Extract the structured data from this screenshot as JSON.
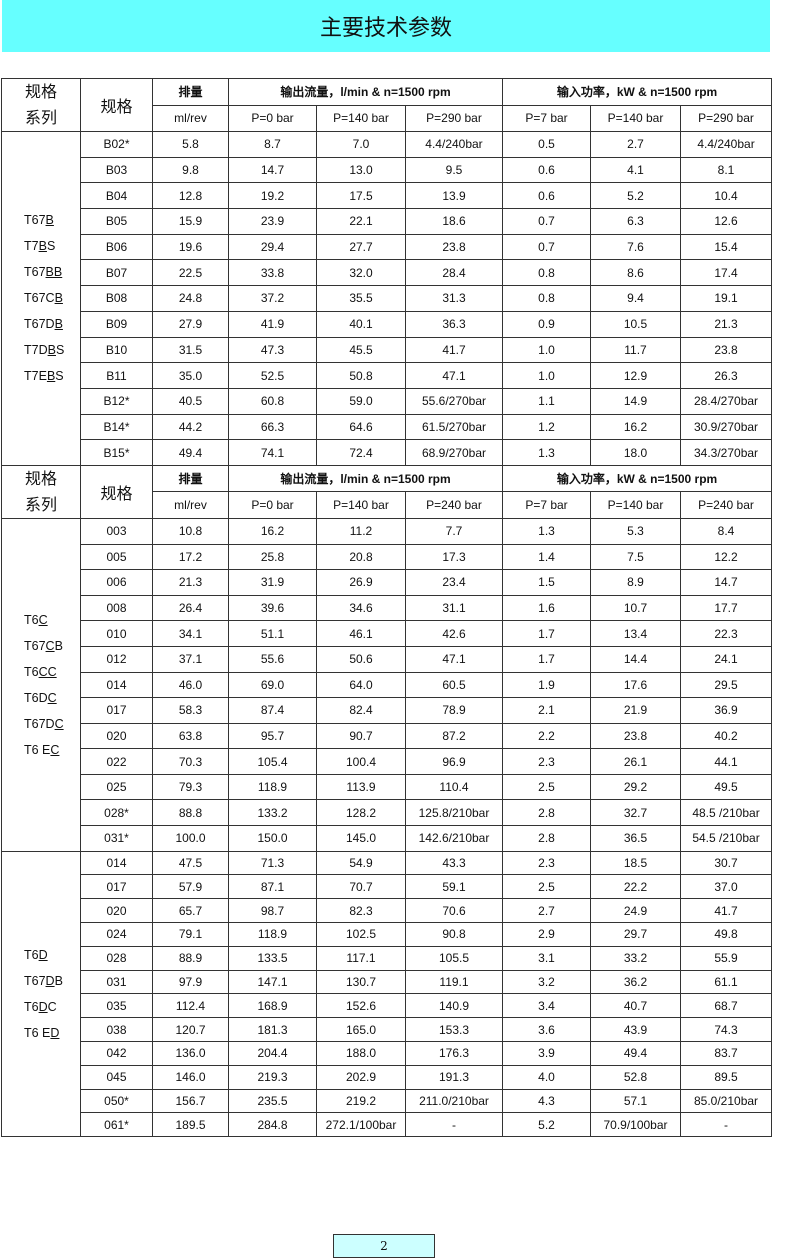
{
  "title": "主要技术参数",
  "page_number": "2",
  "header": {
    "series": "规格系列",
    "model": "规格",
    "disp": "排量",
    "disp_unit": "ml/rev",
    "flow": "输出流量，l/min & n=1500 rpm",
    "power": "输入功率，kW & n=1500 rpm"
  },
  "sections": [
    {
      "flow_cols": [
        "P=0 bar",
        "P=140 bar",
        "P=290 bar"
      ],
      "power_cols": [
        "P=7 bar",
        "P=140 bar",
        "P=290 bar"
      ],
      "series": [
        [
          "T67",
          "B",
          ""
        ],
        [
          "T7",
          "B",
          "S"
        ],
        [
          "T67",
          "BB",
          ""
        ],
        [
          "T67C",
          "B",
          ""
        ],
        [
          "T67D",
          "B",
          ""
        ],
        [
          "T7D",
          "B",
          "S"
        ],
        [
          "T7E",
          "B",
          "S"
        ]
      ],
      "rows": [
        [
          "B02*",
          "5.8",
          "8.7",
          "7.0",
          "4.4/240bar",
          "0.5",
          "2.7",
          "4.4/240bar"
        ],
        [
          "B03",
          "9.8",
          "14.7",
          "13.0",
          "9.5",
          "0.6",
          "4.1",
          "8.1"
        ],
        [
          "B04",
          "12.8",
          "19.2",
          "17.5",
          "13.9",
          "0.6",
          "5.2",
          "10.4"
        ],
        [
          "B05",
          "15.9",
          "23.9",
          "22.1",
          "18.6",
          "0.7",
          "6.3",
          "12.6"
        ],
        [
          "B06",
          "19.6",
          "29.4",
          "27.7",
          "23.8",
          "0.7",
          "7.6",
          "15.4"
        ],
        [
          "B07",
          "22.5",
          "33.8",
          "32.0",
          "28.4",
          "0.8",
          "8.6",
          "17.4"
        ],
        [
          "B08",
          "24.8",
          "37.2",
          "35.5",
          "31.3",
          "0.8",
          "9.4",
          "19.1"
        ],
        [
          "B09",
          "27.9",
          "41.9",
          "40.1",
          "36.3",
          "0.9",
          "10.5",
          "21.3"
        ],
        [
          "B10",
          "31.5",
          "47.3",
          "45.5",
          "41.7",
          "1.0",
          "11.7",
          "23.8"
        ],
        [
          "B11",
          "35.0",
          "52.5",
          "50.8",
          "47.1",
          "1.0",
          "12.9",
          "26.3"
        ],
        [
          "B12*",
          "40.5",
          "60.8",
          "59.0",
          "55.6/270bar",
          "1.1",
          "14.9",
          "28.4/270bar"
        ],
        [
          "B14*",
          "44.2",
          "66.3",
          "64.6",
          "61.5/270bar",
          "1.2",
          "16.2",
          "30.9/270bar"
        ],
        [
          "B15*",
          "49.4",
          "74.1",
          "72.4",
          "68.9/270bar",
          "1.3",
          "18.0",
          "34.3/270bar"
        ]
      ]
    },
    {
      "flow_cols": [
        "P=0 bar",
        "P=140 bar",
        "P=240 bar"
      ],
      "power_cols": [
        "P=7 bar",
        "P=140 bar",
        "P=240 bar"
      ],
      "series": [
        [
          "T6",
          "C",
          ""
        ],
        [
          "T67",
          "C",
          "B"
        ],
        [
          "T6",
          "CC",
          ""
        ],
        [
          "T6D",
          "C",
          ""
        ],
        [
          "T67D",
          "C",
          ""
        ],
        [
          "T6 E",
          "C",
          ""
        ]
      ],
      "rows": [
        [
          "003",
          "10.8",
          "16.2",
          "11.2",
          "7.7",
          "1.3",
          "5.3",
          "8.4"
        ],
        [
          "005",
          "17.2",
          "25.8",
          "20.8",
          "17.3",
          "1.4",
          "7.5",
          "12.2"
        ],
        [
          "006",
          "21.3",
          "31.9",
          "26.9",
          "23.4",
          "1.5",
          "8.9",
          "14.7"
        ],
        [
          "008",
          "26.4",
          "39.6",
          "34.6",
          "31.1",
          "1.6",
          "10.7",
          "17.7"
        ],
        [
          "010",
          "34.1",
          "51.1",
          "46.1",
          "42.6",
          "1.7",
          "13.4",
          "22.3"
        ],
        [
          "012",
          "37.1",
          "55.6",
          "50.6",
          "47.1",
          "1.7",
          "14.4",
          "24.1"
        ],
        [
          "014",
          "46.0",
          "69.0",
          "64.0",
          "60.5",
          "1.9",
          "17.6",
          "29.5"
        ],
        [
          "017",
          "58.3",
          "87.4",
          "82.4",
          "78.9",
          "2.1",
          "21.9",
          "36.9"
        ],
        [
          "020",
          "63.8",
          "95.7",
          "90.7",
          "87.2",
          "2.2",
          "23.8",
          "40.2"
        ],
        [
          "022",
          "70.3",
          "105.4",
          "100.4",
          "96.9",
          "2.3",
          "26.1",
          "44.1"
        ],
        [
          "025",
          "79.3",
          "118.9",
          "113.9",
          "110.4",
          "2.5",
          "29.2",
          "49.5"
        ],
        [
          "028*",
          "88.8",
          "133.2",
          "128.2",
          "125.8/210bar",
          "2.8",
          "32.7",
          "48.5 /210bar"
        ],
        [
          "031*",
          "100.0",
          "150.0",
          "145.0",
          "142.6/210bar",
          "2.8",
          "36.5",
          "54.5 /210bar"
        ]
      ]
    },
    {
      "series": [
        [
          "T6",
          "D",
          ""
        ],
        [
          "T67",
          "D",
          "B"
        ],
        [
          "T6",
          "D",
          "C"
        ],
        [
          "T6 E",
          "D",
          ""
        ]
      ],
      "rows": [
        [
          "014",
          "47.5",
          "71.3",
          "54.9",
          "43.3",
          "2.3",
          "18.5",
          "30.7"
        ],
        [
          "017",
          "57.9",
          "87.1",
          "70.7",
          "59.1",
          "2.5",
          "22.2",
          "37.0"
        ],
        [
          "020",
          "65.7",
          "98.7",
          "82.3",
          "70.6",
          "2.7",
          "24.9",
          "41.7"
        ],
        [
          "024",
          "79.1",
          "118.9",
          "102.5",
          "90.8",
          "2.9",
          "29.7",
          "49.8"
        ],
        [
          "028",
          "88.9",
          "133.5",
          "117.1",
          "105.5",
          "3.1",
          "33.2",
          "55.9"
        ],
        [
          "031",
          "97.9",
          "147.1",
          "130.7",
          "119.1",
          "3.2",
          "36.2",
          "61.1"
        ],
        [
          "035",
          "112.4",
          "168.9",
          "152.6",
          "140.9",
          "3.4",
          "40.7",
          "68.7"
        ],
        [
          "038",
          "120.7",
          "181.3",
          "165.0",
          "153.3",
          "3.6",
          "43.9",
          "74.3"
        ],
        [
          "042",
          "136.0",
          "204.4",
          "188.0",
          "176.3",
          "3.9",
          "49.4",
          "83.7"
        ],
        [
          "045",
          "146.0",
          "219.3",
          "202.9",
          "191.3",
          "4.0",
          "52.8",
          "89.5"
        ],
        [
          "050*",
          "156.7",
          "235.5",
          "219.2",
          "211.0/210bar",
          "4.3",
          "57.1",
          "85.0/210bar"
        ],
        [
          "061*",
          "189.5",
          "284.8",
          "272.1/100bar",
          "-",
          "5.2",
          "70.9/100bar",
          "-"
        ]
      ]
    }
  ]
}
